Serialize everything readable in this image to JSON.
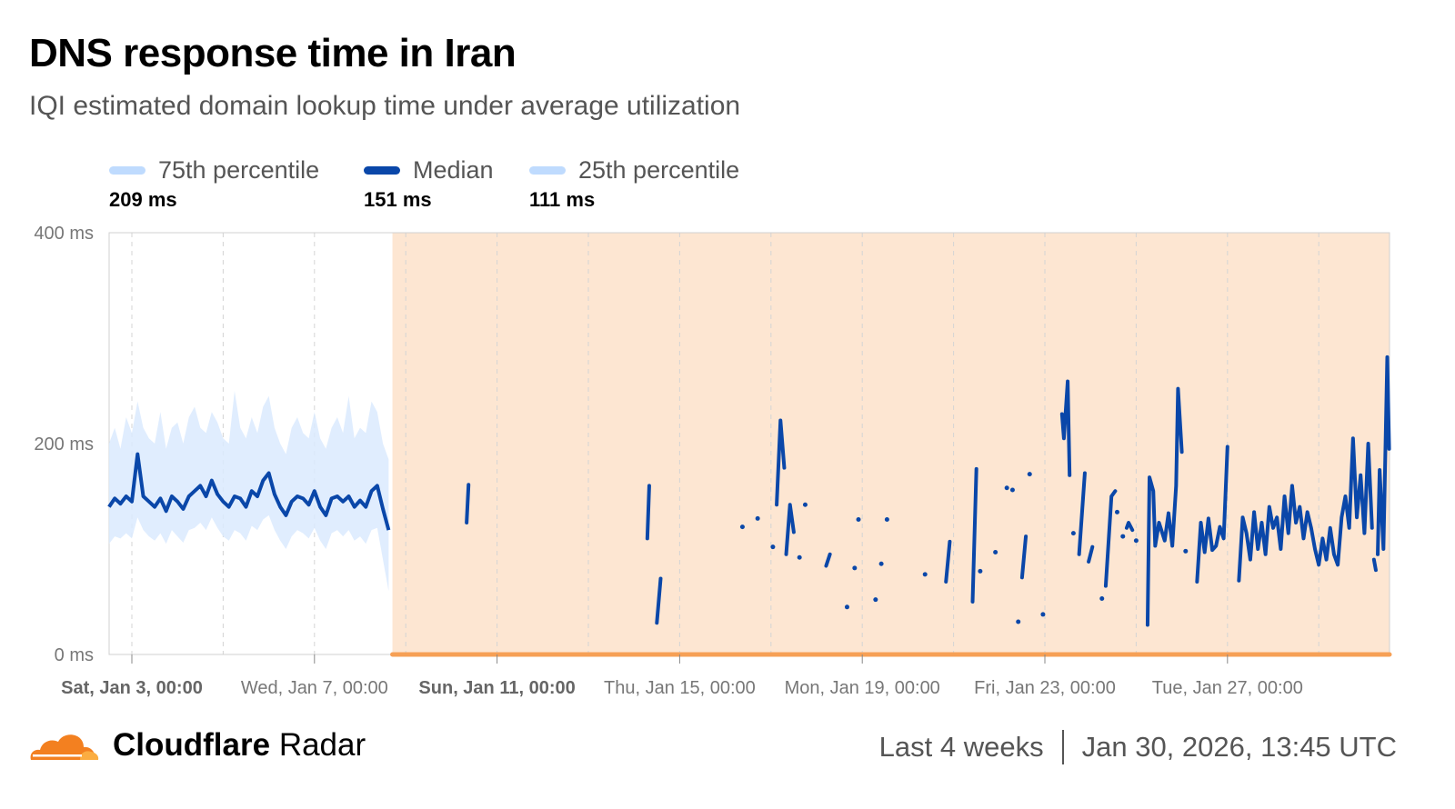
{
  "header": {
    "title": "DNS response time in Iran",
    "subtitle": "IQI estimated domain lookup time under average utilization"
  },
  "legend": [
    {
      "label": "75th percentile",
      "value": "209 ms",
      "color": "#bfdbfe"
    },
    {
      "label": "Median",
      "value": "151 ms",
      "color": "#0a47a9"
    },
    {
      "label": "25th percentile",
      "value": "111 ms",
      "color": "#bfdbfe"
    }
  ],
  "footer": {
    "brand_bold": "Cloudflare",
    "brand_light": "Radar",
    "range": "Last 4 weeks",
    "timestamp": "Jan 30, 2026, 13:45 UTC"
  },
  "chart_data": {
    "type": "line",
    "title": "DNS response time in Iran",
    "y_unit": "ms",
    "ylim": [
      0,
      400
    ],
    "y_ticks": [
      {
        "v": 0,
        "label": "0 ms"
      },
      {
        "v": 200,
        "label": "200 ms"
      },
      {
        "v": 400,
        "label": "400 ms"
      }
    ],
    "xlim": [
      "2026-01-02T12:00",
      "2026-01-30T13:00"
    ],
    "x_ticks": [
      {
        "t": "2026-01-03T00:00",
        "label": "Sat, Jan 3, 00:00",
        "bold": true
      },
      {
        "t": "2026-01-07T00:00",
        "label": "Wed, Jan 7, 00:00",
        "bold": false
      },
      {
        "t": "2026-01-11T00:00",
        "label": "Sun, Jan 11, 00:00",
        "bold": true
      },
      {
        "t": "2026-01-15T00:00",
        "label": "Thu, Jan 15, 00:00",
        "bold": false
      },
      {
        "t": "2026-01-19T00:00",
        "label": "Mon, Jan 19, 00:00",
        "bold": false
      },
      {
        "t": "2026-01-23T00:00",
        "label": "Fri, Jan 23, 00:00",
        "bold": false
      },
      {
        "t": "2026-01-27T00:00",
        "label": "Tue, Jan 27, 00:00",
        "bold": false
      }
    ],
    "grid": "vertical dashed every 2 days",
    "highlight_range": [
      "2026-01-08T17:00",
      "2026-01-30T13:00"
    ],
    "colors": {
      "median": "#0a47a9",
      "band": "#dbeafe",
      "highlight": "#fde6d2",
      "highlight_bar": "#f6a055"
    },
    "early": {
      "x": [
        "2026-01-02T12:00",
        "2026-01-02T15:00",
        "2026-01-02T18:00",
        "2026-01-02T21:00",
        "2026-01-03T00:00",
        "2026-01-03T03:00",
        "2026-01-03T06:00",
        "2026-01-03T09:00",
        "2026-01-03T12:00",
        "2026-01-03T15:00",
        "2026-01-03T18:00",
        "2026-01-03T21:00",
        "2026-01-04T00:00",
        "2026-01-04T03:00",
        "2026-01-04T06:00",
        "2026-01-04T09:00",
        "2026-01-04T12:00",
        "2026-01-04T15:00",
        "2026-01-04T18:00",
        "2026-01-04T21:00",
        "2026-01-05T00:00",
        "2026-01-05T03:00",
        "2026-01-05T06:00",
        "2026-01-05T09:00",
        "2026-01-05T12:00",
        "2026-01-05T15:00",
        "2026-01-05T18:00",
        "2026-01-05T21:00",
        "2026-01-06T00:00",
        "2026-01-06T03:00",
        "2026-01-06T06:00",
        "2026-01-06T09:00",
        "2026-01-06T12:00",
        "2026-01-06T15:00",
        "2026-01-06T18:00",
        "2026-01-06T21:00",
        "2026-01-07T00:00",
        "2026-01-07T03:00",
        "2026-01-07T06:00",
        "2026-01-07T09:00",
        "2026-01-07T12:00",
        "2026-01-07T15:00",
        "2026-01-07T18:00",
        "2026-01-07T21:00",
        "2026-01-08T00:00",
        "2026-01-08T03:00",
        "2026-01-08T06:00",
        "2026-01-08T09:00",
        "2026-01-08T12:00",
        "2026-01-08T15:00"
      ],
      "median": [
        140,
        148,
        143,
        150,
        145,
        190,
        150,
        145,
        140,
        148,
        136,
        150,
        145,
        138,
        150,
        155,
        160,
        150,
        165,
        152,
        145,
        140,
        150,
        148,
        140,
        155,
        150,
        165,
        172,
        152,
        140,
        132,
        145,
        150,
        148,
        142,
        155,
        140,
        132,
        148,
        150,
        145,
        150,
        140,
        146,
        140,
        155,
        160,
        138,
        118
      ],
      "p75": [
        200,
        215,
        195,
        225,
        210,
        240,
        215,
        205,
        200,
        230,
        195,
        215,
        220,
        200,
        225,
        235,
        215,
        210,
        230,
        220,
        205,
        200,
        250,
        215,
        205,
        225,
        210,
        235,
        245,
        215,
        200,
        190,
        215,
        225,
        210,
        205,
        230,
        205,
        195,
        215,
        225,
        210,
        245,
        205,
        215,
        210,
        240,
        230,
        200,
        185
      ],
      "p25": [
        105,
        112,
        110,
        115,
        110,
        130,
        118,
        112,
        108,
        115,
        105,
        118,
        112,
        106,
        118,
        120,
        125,
        118,
        130,
        120,
        112,
        108,
        118,
        115,
        108,
        122,
        118,
        128,
        132,
        118,
        108,
        100,
        112,
        118,
        115,
        110,
        120,
        108,
        100,
        115,
        118,
        112,
        118,
        108,
        112,
        105,
        118,
        120,
        90,
        60
      ]
    },
    "later_median_segments": [
      [
        [
          "2026-01-10T08:00",
          125
        ],
        [
          "2026-01-10T09:00",
          161
        ]
      ],
      [
        [
          "2026-01-14T07:00",
          110
        ],
        [
          "2026-01-14T08:00",
          160
        ]
      ],
      [
        [
          "2026-01-14T12:00",
          30
        ],
        [
          "2026-01-14T14:00",
          72
        ]
      ],
      [
        [
          "2026-01-16T09:00",
          121
        ]
      ],
      [
        [
          "2026-01-16T17:00",
          129
        ]
      ],
      [
        [
          "2026-01-17T01:00",
          102
        ]
      ],
      [
        [
          "2026-01-17T03:00",
          142
        ],
        [
          "2026-01-17T05:00",
          222
        ],
        [
          "2026-01-17T07:00",
          177
        ]
      ],
      [
        [
          "2026-01-17T08:00",
          95
        ],
        [
          "2026-01-17T10:00",
          142
        ],
        [
          "2026-01-17T12:00",
          116
        ]
      ],
      [
        [
          "2026-01-17T15:00",
          92
        ]
      ],
      [
        [
          "2026-01-17T18:00",
          142
        ]
      ],
      [
        [
          "2026-01-18T05:00",
          84
        ],
        [
          "2026-01-18T07:00",
          95
        ]
      ],
      [
        [
          "2026-01-18T16:00",
          45
        ]
      ],
      [
        [
          "2026-01-18T20:00",
          82
        ]
      ],
      [
        [
          "2026-01-18T22:00",
          128
        ]
      ],
      [
        [
          "2026-01-19T07:00",
          52
        ]
      ],
      [
        [
          "2026-01-19T10:00",
          86
        ]
      ],
      [
        [
          "2026-01-19T13:00",
          128
        ]
      ],
      [
        [
          "2026-01-20T09:00",
          76
        ]
      ],
      [
        [
          "2026-01-20T20:00",
          69
        ],
        [
          "2026-01-20T22:00",
          107
        ]
      ],
      [
        [
          "2026-01-21T10:00",
          50
        ],
        [
          "2026-01-21T12:00",
          176
        ]
      ],
      [
        [
          "2026-01-21T14:00",
          79
        ]
      ],
      [
        [
          "2026-01-21T22:00",
          97
        ]
      ],
      [
        [
          "2026-01-22T04:00",
          158
        ]
      ],
      [
        [
          "2026-01-22T07:00",
          156
        ]
      ],
      [
        [
          "2026-01-22T10:00",
          31
        ]
      ],
      [
        [
          "2026-01-22T12:00",
          73
        ],
        [
          "2026-01-22T14:00",
          112
        ]
      ],
      [
        [
          "2026-01-22T16:00",
          171
        ]
      ],
      [
        [
          "2026-01-22T23:00",
          38
        ]
      ],
      [
        [
          "2026-01-23T09:00",
          228
        ],
        [
          "2026-01-23T10:00",
          205
        ],
        [
          "2026-01-23T12:00",
          259
        ],
        [
          "2026-01-23T13:00",
          170
        ]
      ],
      [
        [
          "2026-01-23T15:00",
          115
        ]
      ],
      [
        [
          "2026-01-23T18:00",
          95
        ],
        [
          "2026-01-23T21:00",
          172
        ]
      ],
      [
        [
          "2026-01-23T23:00",
          88
        ],
        [
          "2026-01-24T01:00",
          102
        ]
      ],
      [
        [
          "2026-01-24T06:00",
          53
        ]
      ],
      [
        [
          "2026-01-24T08:00",
          65
        ],
        [
          "2026-01-24T11:00",
          150
        ],
        [
          "2026-01-24T13:00",
          155
        ]
      ],
      [
        [
          "2026-01-24T14:00",
          135
        ]
      ],
      [
        [
          "2026-01-24T17:00",
          112
        ]
      ],
      [
        [
          "2026-01-24T19:00",
          120
        ],
        [
          "2026-01-24T20:00",
          125
        ],
        [
          "2026-01-24T22:00",
          118
        ]
      ],
      [
        [
          "2026-01-25T00:00",
          108
        ]
      ],
      [
        [
          "2026-01-25T06:00",
          28
        ],
        [
          "2026-01-25T07:00",
          168
        ],
        [
          "2026-01-25T09:00",
          155
        ],
        [
          "2026-01-25T10:00",
          103
        ],
        [
          "2026-01-25T12:00",
          125
        ],
        [
          "2026-01-25T15:00",
          108
        ],
        [
          "2026-01-25T17:00",
          134
        ],
        [
          "2026-01-25T19:00",
          103
        ],
        [
          "2026-01-25T21:00",
          160
        ],
        [
          "2026-01-25T22:00",
          252
        ],
        [
          "2026-01-26T00:00",
          192
        ]
      ],
      [
        [
          "2026-01-26T02:00",
          98
        ]
      ],
      [
        [
          "2026-01-26T08:00",
          69
        ],
        [
          "2026-01-26T10:00",
          125
        ],
        [
          "2026-01-26T12:00",
          97
        ],
        [
          "2026-01-26T14:00",
          129
        ],
        [
          "2026-01-26T16:00",
          99
        ],
        [
          "2026-01-26T18:00",
          103
        ],
        [
          "2026-01-26T20:00",
          121
        ],
        [
          "2026-01-26T22:00",
          110
        ],
        [
          "2026-01-27T00:00",
          197
        ]
      ],
      [
        [
          "2026-01-27T06:00",
          70
        ],
        [
          "2026-01-27T08:00",
          130
        ],
        [
          "2026-01-27T10:00",
          115
        ],
        [
          "2026-01-27T12:00",
          90
        ],
        [
          "2026-01-27T14:00",
          135
        ],
        [
          "2026-01-27T16:00",
          100
        ],
        [
          "2026-01-27T18:00",
          125
        ],
        [
          "2026-01-27T20:00",
          95
        ],
        [
          "2026-01-27T22:00",
          140
        ],
        [
          "2026-01-28T00:00",
          120
        ],
        [
          "2026-01-28T02:00",
          130
        ],
        [
          "2026-01-28T04:00",
          100
        ],
        [
          "2026-01-28T06:00",
          150
        ],
        [
          "2026-01-28T08:00",
          115
        ],
        [
          "2026-01-28T10:00",
          160
        ],
        [
          "2026-01-28T12:00",
          125
        ],
        [
          "2026-01-28T14:00",
          140
        ],
        [
          "2026-01-28T16:00",
          110
        ],
        [
          "2026-01-28T18:00",
          135
        ],
        [
          "2026-01-28T20:00",
          120
        ],
        [
          "2026-01-28T22:00",
          100
        ],
        [
          "2026-01-29T00:00",
          85
        ],
        [
          "2026-01-29T02:00",
          110
        ],
        [
          "2026-01-29T04:00",
          90
        ],
        [
          "2026-01-29T06:00",
          120
        ],
        [
          "2026-01-29T08:00",
          95
        ],
        [
          "2026-01-29T10:00",
          85
        ],
        [
          "2026-01-29T12:00",
          130
        ],
        [
          "2026-01-29T14:00",
          150
        ],
        [
          "2026-01-29T16:00",
          120
        ],
        [
          "2026-01-29T18:00",
          205
        ],
        [
          "2026-01-29T20:00",
          130
        ],
        [
          "2026-01-29T22:00",
          170
        ],
        [
          "2026-01-30T00:00",
          115
        ],
        [
          "2026-01-30T02:00",
          200
        ],
        [
          "2026-01-30T04:00",
          120
        ]
      ],
      [
        [
          "2026-01-30T05:00",
          90
        ],
        [
          "2026-01-30T06:00",
          80
        ]
      ],
      [
        [
          "2026-01-30T07:00",
          95
        ],
        [
          "2026-01-30T08:00",
          175
        ],
        [
          "2026-01-30T10:00",
          100
        ],
        [
          "2026-01-30T12:00",
          282
        ],
        [
          "2026-01-30T13:00",
          195
        ]
      ]
    ]
  }
}
